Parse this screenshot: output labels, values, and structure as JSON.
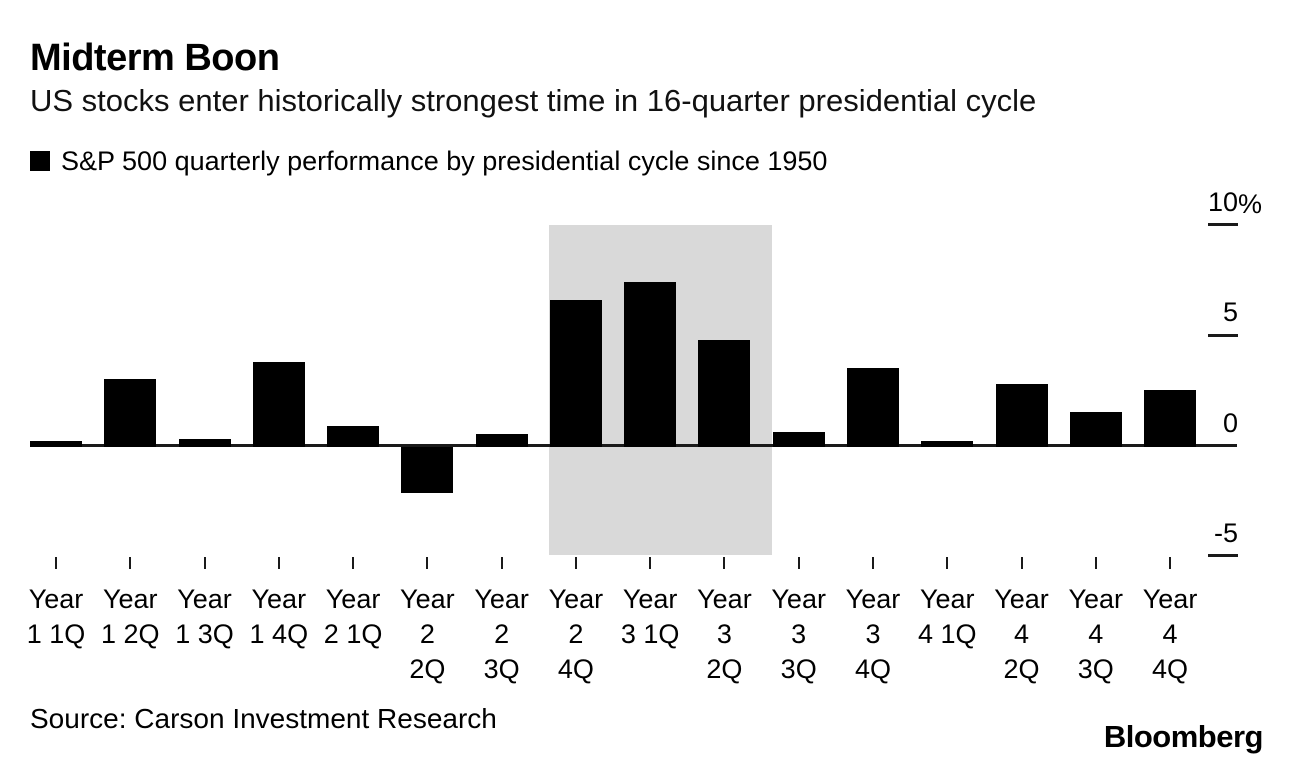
{
  "header": {
    "title": "Midterm Boon",
    "subtitle": "US stocks enter historically strongest time in 16-quarter presidential cycle",
    "legend_label": "S&P 500 quarterly performance by presidential cycle since 1950"
  },
  "chart_data": {
    "type": "bar",
    "title": "Midterm Boon",
    "subtitle": "US stocks enter historically strongest time in 16-quarter presidential cycle",
    "series_name": "S&P 500 quarterly performance by presidential cycle since 1950",
    "unit": "%",
    "categories": [
      "Year 1 1Q",
      "Year 1 2Q",
      "Year 1 3Q",
      "Year 1 4Q",
      "Year 2 1Q",
      "Year 2 2Q",
      "Year 2 3Q",
      "Year 2 4Q",
      "Year 3 1Q",
      "Year 3 2Q",
      "Year 3 3Q",
      "Year 3 4Q",
      "Year 4 1Q",
      "Year 4 2Q",
      "Year 4 3Q",
      "Year 4 4Q"
    ],
    "category_lines": [
      [
        "Year",
        "1 1Q"
      ],
      [
        "Year",
        "1 2Q"
      ],
      [
        "Year",
        "1 3Q"
      ],
      [
        "Year",
        "1 4Q"
      ],
      [
        "Year",
        "2 1Q"
      ],
      [
        "Year",
        "2",
        "2Q"
      ],
      [
        "Year",
        "2",
        "3Q"
      ],
      [
        "Year",
        "2",
        "4Q"
      ],
      [
        "Year",
        "3 1Q"
      ],
      [
        "Year",
        "3",
        "2Q"
      ],
      [
        "Year",
        "3",
        "3Q"
      ],
      [
        "Year",
        "3",
        "4Q"
      ],
      [
        "Year",
        "4 1Q"
      ],
      [
        "Year",
        "4",
        "2Q"
      ],
      [
        "Year",
        "4",
        "3Q"
      ],
      [
        "Year",
        "4",
        "4Q"
      ]
    ],
    "values": [
      0.2,
      3.0,
      0.3,
      3.8,
      0.9,
      -2.1,
      0.5,
      6.6,
      7.4,
      4.8,
      0.6,
      3.5,
      0.2,
      2.8,
      1.5,
      2.5
    ],
    "yticks": [
      10,
      5,
      0,
      -5
    ],
    "ytick_labels": [
      "10%",
      "5",
      "0",
      "-5"
    ],
    "ylim": [
      -6.5,
      10.5
    ],
    "grid": "off",
    "legend_position": "top-left",
    "bar_color": "#000000",
    "axis_color": "#1a1a1a",
    "highlight_region": {
      "categories": [
        "Year 2 4Q",
        "Year 3 1Q",
        "Year 3 2Q"
      ],
      "from_index": 7,
      "to_index": 9,
      "color": "#d9d9d9",
      "y_from": -5,
      "y_to": 10
    }
  },
  "footer": {
    "source": "Source: Carson Investment Research",
    "brand": "Bloomberg"
  }
}
